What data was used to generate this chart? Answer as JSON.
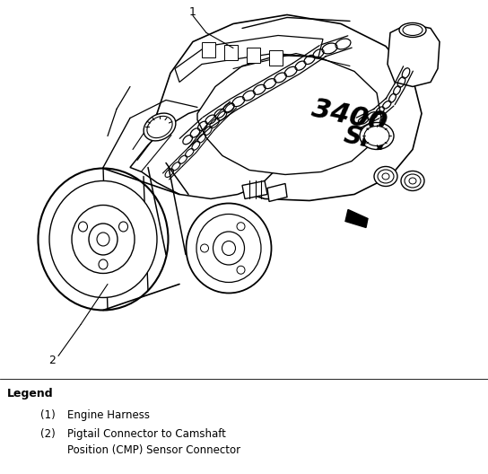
{
  "background_color": "#ffffff",
  "legend_title": "Legend",
  "legend_item1_num": "(1)",
  "legend_item1_desc": "Engine Harness",
  "legend_item2_num": "(2)",
  "legend_item2_desc_line1": "Pigtail Connector to Camshaft",
  "legend_item2_desc_line2": "Position (CMP) Sensor Connector",
  "label_1": "1",
  "label_2": "2",
  "fig_width": 5.44,
  "fig_height": 5.28,
  "dpi": 100
}
